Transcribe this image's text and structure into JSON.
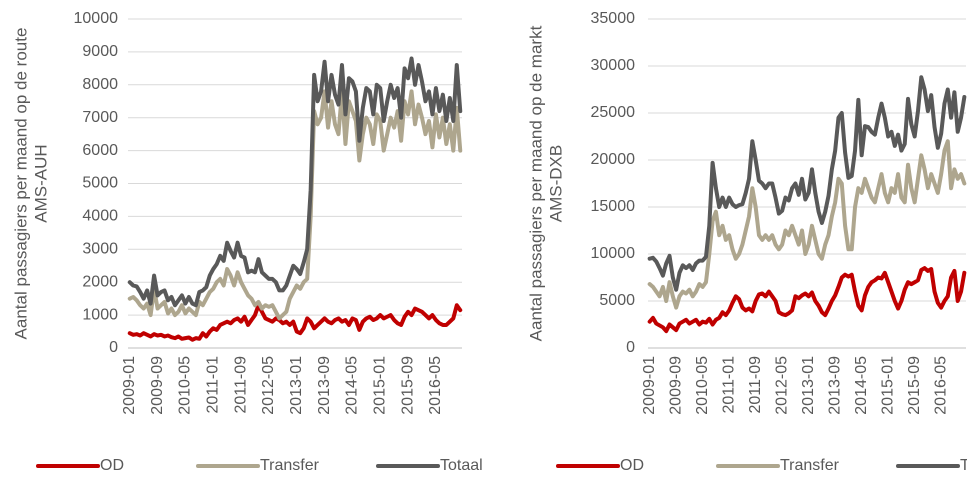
{
  "chart_data": [
    {
      "type": "line",
      "ylabel": [
        "Aantal passagiers per maand op de route",
        "AMS-AUH"
      ],
      "categories": [
        "2009-01",
        null,
        null,
        null,
        null,
        null,
        null,
        null,
        "2009-09",
        null,
        null,
        null,
        null,
        null,
        null,
        null,
        "2010-05",
        null,
        null,
        null,
        null,
        null,
        null,
        null,
        "2011-01",
        null,
        null,
        null,
        null,
        null,
        null,
        null,
        "2011-09",
        null,
        null,
        null,
        null,
        null,
        null,
        null,
        "2012-05",
        null,
        null,
        null,
        null,
        null,
        null,
        null,
        "2013-01",
        null,
        null,
        null,
        null,
        null,
        null,
        null,
        "2013-09",
        null,
        null,
        null,
        null,
        null,
        null,
        null,
        "2014-05",
        null,
        null,
        null,
        null,
        null,
        null,
        null,
        "2015-01",
        null,
        null,
        null,
        null,
        null,
        null,
        null,
        "2015-09",
        null,
        null,
        null,
        null,
        null,
        null,
        null,
        "2016-05",
        null,
        null,
        null,
        null,
        null,
        null,
        null
      ],
      "series": [
        {
          "name": "OD",
          "color": "#c00000",
          "values": [
            450,
            400,
            420,
            380,
            450,
            400,
            350,
            420,
            380,
            400,
            350,
            380,
            330,
            300,
            350,
            280,
            300,
            320,
            250,
            300,
            280,
            450,
            350,
            500,
            600,
            550,
            700,
            750,
            800,
            750,
            850,
            900,
            800,
            950,
            700,
            850,
            1000,
            1300,
            1100,
            900,
            850,
            800,
            900,
            850,
            750,
            800,
            700,
            800,
            500,
            450,
            600,
            900,
            800,
            600,
            700,
            800,
            900,
            800,
            750,
            850,
            900,
            800,
            850,
            700,
            900,
            850,
            550,
            800,
            900,
            950,
            850,
            900,
            1000,
            900,
            950,
            1000,
            850,
            750,
            700,
            950,
            1100,
            1000,
            1200,
            1150,
            1100,
            1000,
            900,
            1000,
            850,
            750,
            700,
            700,
            800,
            900,
            1300,
            1150
          ]
        },
        {
          "name": "Transfer",
          "color": "#aea68e",
          "values": [
            1500,
            1550,
            1450,
            1300,
            1200,
            1350,
            1000,
            1800,
            1200,
            1300,
            1400,
            1050,
            1200,
            1000,
            1100,
            1300,
            1050,
            1200,
            1100,
            1000,
            1400,
            1300,
            1500,
            1700,
            1800,
            2000,
            2100,
            1900,
            2400,
            2200,
            1900,
            2300,
            2000,
            1800,
            1600,
            1500,
            1300,
            1400,
            1200,
            1300,
            1250,
            1300,
            1100,
            900,
            1000,
            1100,
            1500,
            1700,
            1900,
            1800,
            2000,
            2100,
            4000,
            7200,
            6800,
            7000,
            7800,
            6700,
            7500,
            6800,
            6500,
            7800,
            6200,
            7500,
            7200,
            6900,
            5700,
            6500,
            7000,
            6800,
            6200,
            7100,
            6900,
            6000,
            6500,
            7000,
            6700,
            7200,
            6300,
            7500,
            7100,
            7800,
            6800,
            7400,
            7000,
            6500,
            6900,
            6100,
            7100,
            6400,
            7000,
            6200,
            6800,
            6000,
            7300,
            6000
          ]
        },
        {
          "name": "Totaal",
          "color": "#595959",
          "values": [
            2000,
            1900,
            1870,
            1700,
            1500,
            1750,
            1350,
            2200,
            1600,
            1700,
            1750,
            1450,
            1550,
            1300,
            1450,
            1600,
            1350,
            1550,
            1350,
            1300,
            1700,
            1750,
            1850,
            2200,
            2400,
            2550,
            2800,
            2650,
            3200,
            2950,
            2750,
            3200,
            2800,
            2750,
            2300,
            2350,
            2300,
            2700,
            2300,
            2200,
            2100,
            2100,
            2000,
            1750,
            1750,
            1900,
            2200,
            2500,
            2400,
            2250,
            2600,
            3000,
            4800,
            8300,
            7500,
            7800,
            8700,
            7500,
            8300,
            7700,
            7400,
            8600,
            7100,
            8200,
            8100,
            7800,
            6300,
            7300,
            7900,
            7800,
            7100,
            8000,
            7900,
            6900,
            7500,
            8000,
            7600,
            7900,
            7000,
            8500,
            8200,
            8800,
            8000,
            8600,
            8100,
            7500,
            7800,
            7100,
            7900,
            7200,
            7700,
            6900,
            7600,
            6900,
            8600,
            7200
          ]
        }
      ],
      "ylim": [
        0,
        10000
      ],
      "yticks": [
        0,
        1000,
        2000,
        3000,
        4000,
        5000,
        6000,
        7000,
        8000,
        9000,
        10000
      ],
      "grid": true,
      "legend": "bottom"
    },
    {
      "type": "line",
      "ylabel": [
        "Aantal passagiers per maand op de markt",
        "AMS-DXB"
      ],
      "categories": [
        "2009-01",
        null,
        null,
        null,
        null,
        null,
        null,
        null,
        "2009-09",
        null,
        null,
        null,
        null,
        null,
        null,
        null,
        "2010-05",
        null,
        null,
        null,
        null,
        null,
        null,
        null,
        "2011-01",
        null,
        null,
        null,
        null,
        null,
        null,
        null,
        "2011-09",
        null,
        null,
        null,
        null,
        null,
        null,
        null,
        "2012-05",
        null,
        null,
        null,
        null,
        null,
        null,
        null,
        "2013-01",
        null,
        null,
        null,
        null,
        null,
        null,
        null,
        "2013-09",
        null,
        null,
        null,
        null,
        null,
        null,
        null,
        "2014-05",
        null,
        null,
        null,
        null,
        null,
        null,
        null,
        "2015-01",
        null,
        null,
        null,
        null,
        null,
        null,
        null,
        "2015-09",
        null,
        null,
        null,
        null,
        null,
        null,
        null,
        "2016-05",
        null,
        null,
        null,
        null,
        null,
        null,
        null
      ],
      "series": [
        {
          "name": "OD",
          "color": "#c00000",
          "values": [
            2800,
            3200,
            2600,
            2400,
            2200,
            1800,
            2500,
            2200,
            1900,
            2600,
            2800,
            3000,
            2600,
            2800,
            3000,
            2500,
            2800,
            2700,
            3100,
            2500,
            3000,
            3200,
            3800,
            3500,
            4000,
            4800,
            5500,
            5200,
            4300,
            4000,
            4200,
            3900,
            5000,
            5700,
            5800,
            5500,
            6000,
            5500,
            5000,
            3800,
            3600,
            3500,
            3700,
            4000,
            5500,
            5300,
            5600,
            5800,
            5500,
            5900,
            5000,
            4500,
            3800,
            3500,
            4200,
            5000,
            5600,
            6500,
            7500,
            7800,
            7600,
            7800,
            6000,
            4500,
            4000,
            5600,
            6500,
            7000,
            7200,
            7500,
            7400,
            8000,
            7000,
            6000,
            5000,
            4200,
            5000,
            6200,
            7000,
            6800,
            7000,
            7200,
            8300,
            8500,
            8200,
            8400,
            6000,
            4800,
            4300,
            5000,
            5500,
            7500,
            8200,
            5000,
            6000,
            8000
          ]
        },
        {
          "name": "Transfer",
          "color": "#aea68e",
          "values": [
            6800,
            6500,
            6000,
            5500,
            6500,
            5000,
            7000,
            5500,
            4300,
            5500,
            6000,
            5800,
            6200,
            5500,
            6000,
            6800,
            6500,
            7000,
            10000,
            13500,
            14500,
            12000,
            13000,
            11500,
            12000,
            10500,
            9500,
            10000,
            11000,
            12500,
            14000,
            17000,
            15000,
            12000,
            11500,
            12000,
            11500,
            12000,
            11000,
            10500,
            11000,
            12500,
            12000,
            13000,
            12000,
            11000,
            12500,
            10000,
            11000,
            13000,
            11500,
            10000,
            9500,
            11000,
            12000,
            14000,
            15500,
            18000,
            17500,
            13000,
            10500,
            10500,
            15000,
            17000,
            16500,
            18000,
            17000,
            16000,
            15500,
            17000,
            18500,
            16500,
            15500,
            17000,
            16500,
            18500,
            16000,
            15500,
            19500,
            17000,
            15500,
            18000,
            20500,
            19000,
            17000,
            18500,
            17500,
            16500,
            18500,
            21000,
            22000,
            17000,
            19000,
            18000,
            18500,
            17500
          ]
        },
        {
          "name": "Totaal",
          "color": "#595959",
          "values": [
            9500,
            9600,
            9200,
            8500,
            7700,
            9000,
            9800,
            7500,
            6200,
            8000,
            8800,
            8500,
            8800,
            8300,
            9000,
            9300,
            9300,
            9700,
            13000,
            19700,
            17000,
            15000,
            16000,
            15000,
            16000,
            15300,
            15000,
            15200,
            15300,
            16500,
            18000,
            22000,
            20000,
            17800,
            17500,
            17000,
            17500,
            17500,
            16000,
            14300,
            14600,
            16000,
            15700,
            17000,
            17500,
            16300,
            18000,
            15800,
            16500,
            19000,
            16500,
            14500,
            13300,
            14500,
            16200,
            19000,
            21000,
            24500,
            25000,
            20800,
            18100,
            18300,
            21000,
            26400,
            20500,
            23600,
            23500,
            23000,
            22700,
            24500,
            26000,
            24500,
            22500,
            23000,
            21500,
            22700,
            21000,
            21700,
            26500,
            23800,
            22500,
            25200,
            28800,
            27500,
            25200,
            26900,
            23500,
            21300,
            22800,
            26000,
            27500,
            24500,
            27200,
            23000,
            24500,
            26700
          ]
        }
      ],
      "ylim": [
        0,
        35000
      ],
      "yticks": [
        0,
        5000,
        10000,
        15000,
        20000,
        25000,
        30000,
        35000
      ],
      "grid": true,
      "legend": "bottom"
    }
  ]
}
